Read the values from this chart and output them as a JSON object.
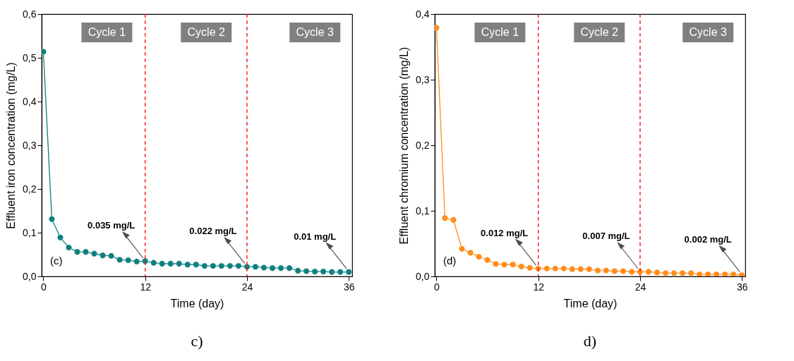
{
  "chart_data": [
    {
      "type": "line",
      "xlabel": "Time (day)",
      "ylabel": "Effluent iron concentration (mg/L)",
      "x": [
        0,
        1,
        2,
        3,
        4,
        5,
        6,
        7,
        8,
        9,
        10,
        11,
        12,
        13,
        14,
        15,
        16,
        17,
        18,
        19,
        20,
        21,
        22,
        23,
        24,
        25,
        26,
        27,
        28,
        29,
        30,
        31,
        32,
        33,
        34,
        35,
        36
      ],
      "series": [
        {
          "color": "#0e7f7f",
          "values": [
            0.514,
            0.131,
            0.089,
            0.066,
            0.056,
            0.056,
            0.052,
            0.048,
            0.047,
            0.038,
            0.037,
            0.034,
            0.035,
            0.031,
            0.029,
            0.029,
            0.029,
            0.027,
            0.027,
            0.024,
            0.024,
            0.024,
            0.024,
            0.024,
            0.022,
            0.022,
            0.02,
            0.019,
            0.019,
            0.019,
            0.013,
            0.012,
            0.011,
            0.011,
            0.01,
            0.01,
            0.01
          ]
        }
      ],
      "xlim": [
        -0.2,
        36.4
      ],
      "xticks": [
        0,
        12,
        24,
        36
      ],
      "ylim": [
        0,
        0.6
      ],
      "yticks": [
        {
          "value": 0,
          "label": "0,0"
        },
        {
          "value": 0.1,
          "label": "0,1"
        },
        {
          "value": 0.2,
          "label": "0,2"
        },
        {
          "value": 0.3,
          "label": "0,3"
        },
        {
          "value": 0.4,
          "label": "0,4"
        },
        {
          "value": 0.5,
          "label": "0,5"
        },
        {
          "value": 0.6,
          "label": "0,6"
        }
      ],
      "marker": "circle",
      "line_style": "solid",
      "grid": false,
      "ref_lines": [
        {
          "axis": "x",
          "value": 12,
          "color": "#ff0000",
          "line_style": "dashed"
        },
        {
          "axis": "x",
          "value": 24,
          "color": "#ff0000",
          "line_style": "dashed"
        }
      ],
      "annotations": [
        "Cycle 1",
        "Cycle 2",
        "Cycle 3",
        "(c)",
        "c)",
        {
          "text": "0.035 mg/L",
          "x": 12,
          "y": 0.035
        },
        {
          "text": "0.022 mg/L",
          "x": 24,
          "y": 0.022
        },
        {
          "text": "0.01 mg/L",
          "x": 36,
          "y": 0.01
        }
      ]
    },
    {
      "type": "line",
      "xlabel": "Time (day)",
      "ylabel": "Effluent chromium concentration (mg/L)",
      "x": [
        0,
        1,
        2,
        3,
        4,
        5,
        6,
        7,
        8,
        9,
        10,
        11,
        12,
        13,
        14,
        15,
        16,
        17,
        18,
        19,
        20,
        21,
        22,
        23,
        24,
        25,
        26,
        27,
        28,
        29,
        30,
        31,
        32,
        33,
        34,
        35,
        36
      ],
      "series": [
        {
          "color": "#ff8c1a",
          "values": [
            0.379,
            0.089,
            0.086,
            0.042,
            0.036,
            0.03,
            0.025,
            0.019,
            0.018,
            0.018,
            0.015,
            0.013,
            0.012,
            0.012,
            0.012,
            0.012,
            0.011,
            0.011,
            0.011,
            0.009,
            0.009,
            0.008,
            0.008,
            0.007,
            0.007,
            0.007,
            0.006,
            0.005,
            0.005,
            0.005,
            0.005,
            0.003,
            0.003,
            0.003,
            0.003,
            0.003,
            0.002
          ]
        }
      ],
      "xlim": [
        -0.2,
        36.4
      ],
      "xticks": [
        0,
        12,
        24,
        36
      ],
      "ylim": [
        0,
        0.4
      ],
      "yticks": [
        {
          "value": 0,
          "label": "0,0"
        },
        {
          "value": 0.1,
          "label": "0,1"
        },
        {
          "value": 0.2,
          "label": "0,2"
        },
        {
          "value": 0.3,
          "label": "0,3"
        },
        {
          "value": 0.4,
          "label": "0,4"
        }
      ],
      "marker": "circle",
      "line_style": "solid",
      "grid": false,
      "ref_lines": [
        {
          "axis": "x",
          "value": 12,
          "color": "#ff0000",
          "line_style": "dashed"
        },
        {
          "axis": "x",
          "value": 24,
          "color": "#ff0000",
          "line_style": "dashed"
        }
      ],
      "annotations": [
        "Cycle 1",
        "Cycle 2",
        "Cycle 3",
        "(d)",
        "d)",
        {
          "text": "0.012 mg/L",
          "x": 12,
          "y": 0.012
        },
        {
          "text": "0.007 mg/L",
          "x": 24,
          "y": 0.007
        },
        {
          "text": "0.002 mg/L",
          "x": 36,
          "y": 0.002
        }
      ]
    }
  ]
}
